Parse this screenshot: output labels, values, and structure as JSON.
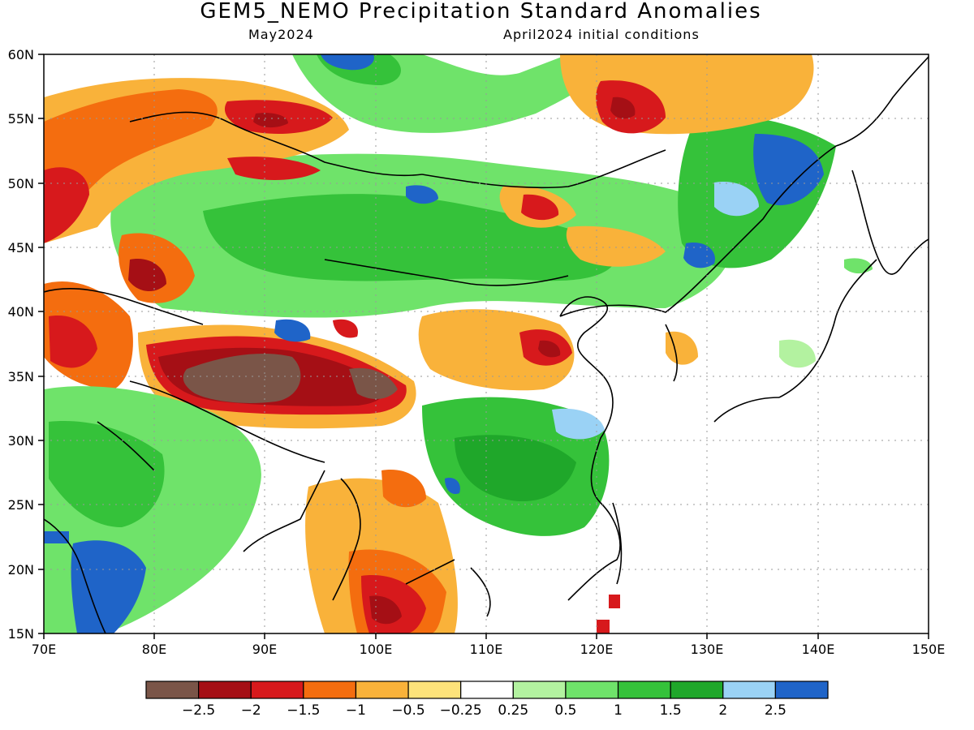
{
  "title": "GEM5_NEMO Precipitation Standard Anomalies",
  "subtitle_left": "May2024",
  "subtitle_right": "April2024 initial conditions",
  "map": {
    "lon_range": [
      70,
      150
    ],
    "lat_range": [
      15,
      60
    ],
    "lon_ticks": [
      "70E",
      "80E",
      "90E",
      "100E",
      "110E",
      "120E",
      "130E",
      "140E",
      "150E"
    ],
    "lat_ticks": [
      "15N",
      "20N",
      "25N",
      "30N",
      "35N",
      "40N",
      "45N",
      "50N",
      "55N",
      "60N"
    ],
    "gridlines": "dotted"
  },
  "colorbar": {
    "labels": [
      "-2.5",
      "-2",
      "-1.5",
      "-1",
      "-0.5",
      "-0.25",
      "0.25",
      "0.5",
      "1",
      "1.5",
      "2",
      "2.5"
    ],
    "colors": [
      "#7a5548",
      "#a50f15",
      "#d7191c",
      "#f46d0f",
      "#f9b23a",
      "#fde37a",
      "#ffffff",
      "#b3f2a0",
      "#6fe36a",
      "#35c23a",
      "#1fa72a",
      "#9ad2f5",
      "#1f64c8"
    ]
  }
}
